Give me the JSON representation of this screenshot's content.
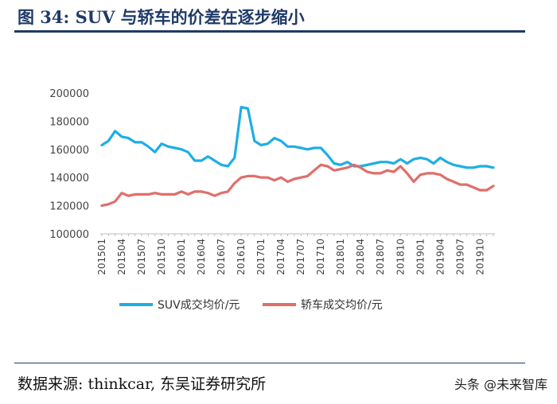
{
  "figure": {
    "title": "图 34:  SUV 与轿车的价差在逐步缩小",
    "source": "数据来源:  thinkcar,  东吴证券研究所",
    "watermark": "头条 @未来智库"
  },
  "colors": {
    "suv": "#1eaee6",
    "sedan": "#e06e6a",
    "rule": "#1f3a67"
  },
  "chart_data": {
    "type": "line",
    "ylim": [
      100000,
      200000
    ],
    "yticks": [
      100000,
      120000,
      140000,
      160000,
      180000,
      200000
    ],
    "x": [
      "201501",
      "201502",
      "201503",
      "201504",
      "201505",
      "201506",
      "201507",
      "201508",
      "201509",
      "201510",
      "201511",
      "201512",
      "201601",
      "201602",
      "201603",
      "201604",
      "201605",
      "201606",
      "201607",
      "201608",
      "201609",
      "201610",
      "201611",
      "201612",
      "201701",
      "201702",
      "201703",
      "201704",
      "201705",
      "201706",
      "201707",
      "201708",
      "201709",
      "201710",
      "201711",
      "201712",
      "201801",
      "201802",
      "201803",
      "201804",
      "201805",
      "201806",
      "201807",
      "201808",
      "201809",
      "201810",
      "201811",
      "201812",
      "201901",
      "201902",
      "201903",
      "201904",
      "201905",
      "201906",
      "201907",
      "201908",
      "201909",
      "201910",
      "201911",
      "201912"
    ],
    "xtick_labels": [
      "201501",
      "201504",
      "201507",
      "201510",
      "201601",
      "201604",
      "201607",
      "201610",
      "201701",
      "201704",
      "201707",
      "201710",
      "201801",
      "201804",
      "201807",
      "201810",
      "201901",
      "201904",
      "201907",
      "201910"
    ],
    "series": [
      {
        "name": "SUV成交均价/元",
        "values": [
          163000,
          166000,
          173000,
          169000,
          168000,
          165000,
          165000,
          162000,
          158000,
          164000,
          162000,
          161000,
          160000,
          158000,
          152000,
          152000,
          155000,
          152000,
          149000,
          148000,
          154000,
          190000,
          189000,
          166000,
          163000,
          164000,
          168000,
          166000,
          162000,
          162000,
          161000,
          160000,
          161000,
          161000,
          156000,
          150000,
          149000,
          151000,
          148000,
          148000,
          149000,
          150000,
          151000,
          151000,
          150000,
          153000,
          150000,
          153000,
          154000,
          153000,
          150000,
          154000,
          151000,
          149000,
          148000,
          147000,
          147000,
          148000,
          148000,
          147000
        ]
      },
      {
        "name": "轿车成交均价/元",
        "values": [
          120000,
          121000,
          123000,
          129000,
          127000,
          128000,
          128000,
          128000,
          129000,
          128000,
          128000,
          128000,
          130000,
          128000,
          130000,
          130000,
          129000,
          127000,
          129000,
          130000,
          136000,
          140000,
          141000,
          141000,
          140000,
          140000,
          138000,
          140000,
          137000,
          139000,
          140000,
          141000,
          145000,
          149000,
          148000,
          145000,
          146000,
          147000,
          149000,
          147000,
          144000,
          143000,
          143000,
          145000,
          144000,
          148000,
          143000,
          137000,
          142000,
          143000,
          143000,
          142000,
          139000,
          137000,
          135000,
          135000,
          133000,
          131000,
          131000,
          134000
        ]
      }
    ]
  }
}
